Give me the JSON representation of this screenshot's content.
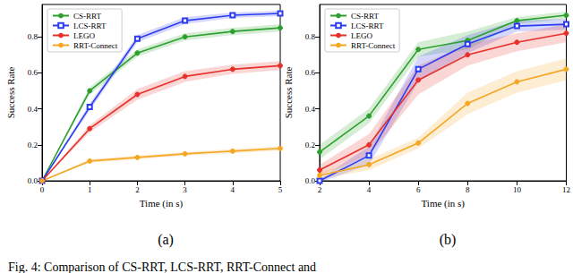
{
  "chart_data": [
    {
      "type": "line",
      "title": "(a)",
      "x_label": "Time (in s)",
      "y_label": "Success Rate",
      "x": [
        0,
        1,
        2,
        3,
        4,
        5
      ],
      "xlim": [
        0,
        5
      ],
      "xticks": [
        0,
        1,
        2,
        3,
        4,
        5
      ],
      "ylim": [
        0,
        0.98
      ],
      "yticks": [
        {
          "value": 0,
          "label": "0.0"
        },
        {
          "value": 0.2,
          "label": "0.2"
        },
        {
          "value": 0.4,
          "label": "0.4"
        },
        {
          "value": 0.6,
          "label": "0.6"
        },
        {
          "value": 0.8,
          "label": "0.8"
        }
      ],
      "grid": false,
      "legend": "upper left",
      "series": [
        {
          "name": "CS-RRT",
          "color": "#2ca02c",
          "marker": "circle",
          "values": [
            0,
            0.5,
            0.71,
            0.8,
            0.83,
            0.85
          ],
          "errors": [
            0,
            0.02,
            0.02,
            0.02,
            0.02,
            0.02
          ]
        },
        {
          "name": "LCS-RRT",
          "color": "#2b3cf0",
          "marker": "square",
          "values": [
            0,
            0.41,
            0.79,
            0.89,
            0.92,
            0.93
          ],
          "errors": [
            0,
            0.02,
            0.02,
            0.02,
            0.015,
            0.015
          ]
        },
        {
          "name": "LEGO",
          "color": "#e8302a",
          "marker": "circle",
          "values": [
            0,
            0.29,
            0.48,
            0.58,
            0.62,
            0.64
          ],
          "errors": [
            0,
            0.02,
            0.03,
            0.03,
            0.025,
            0.025
          ]
        },
        {
          "name": "RRT-Connect",
          "color": "#f5a623",
          "marker": "circle",
          "values": [
            0,
            0.11,
            0.13,
            0.15,
            0.165,
            0.18
          ],
          "errors": [
            0,
            0.01,
            0.01,
            0.01,
            0.012,
            0.012
          ]
        }
      ]
    },
    {
      "type": "line",
      "title": "(b)",
      "x_label": "Time (in s)",
      "y_label": "Success Rate",
      "x": [
        2,
        4,
        6,
        8,
        10,
        12
      ],
      "xlim": [
        2,
        12
      ],
      "xticks": [
        2,
        4,
        6,
        8,
        10,
        12
      ],
      "ylim": [
        0,
        0.98
      ],
      "yticks": [
        {
          "value": 0,
          "label": "0.0"
        },
        {
          "value": 0.2,
          "label": "0.2"
        },
        {
          "value": 0.4,
          "label": "0.4"
        },
        {
          "value": 0.6,
          "label": "0.6"
        },
        {
          "value": 0.8,
          "label": "0.8"
        }
      ],
      "grid": false,
      "legend": "upper left",
      "series": [
        {
          "name": "CS-RRT",
          "color": "#2ca02c",
          "marker": "circle",
          "values": [
            0.16,
            0.36,
            0.73,
            0.78,
            0.89,
            0.92
          ],
          "errors": [
            0.04,
            0.04,
            0.04,
            0.05,
            0.02,
            0.02
          ]
        },
        {
          "name": "LCS-RRT",
          "color": "#2b3cf0",
          "marker": "square",
          "values": [
            0.0,
            0.14,
            0.62,
            0.76,
            0.86,
            0.87
          ],
          "errors": [
            0.01,
            0.05,
            0.07,
            0.05,
            0.03,
            0.03
          ]
        },
        {
          "name": "LEGO",
          "color": "#e8302a",
          "marker": "circle",
          "values": [
            0.06,
            0.2,
            0.56,
            0.7,
            0.77,
            0.82
          ],
          "errors": [
            0.03,
            0.06,
            0.08,
            0.06,
            0.05,
            0.05
          ]
        },
        {
          "name": "RRT-Connect",
          "color": "#f5a623",
          "marker": "circle",
          "values": [
            0.03,
            0.09,
            0.21,
            0.43,
            0.55,
            0.62
          ],
          "errors": [
            0.02,
            0.03,
            0.03,
            0.06,
            0.06,
            0.06
          ]
        }
      ]
    }
  ],
  "caption": "Fig. 4: Comparison of CS-RRT, LCS-RRT, RRT-Connect and"
}
